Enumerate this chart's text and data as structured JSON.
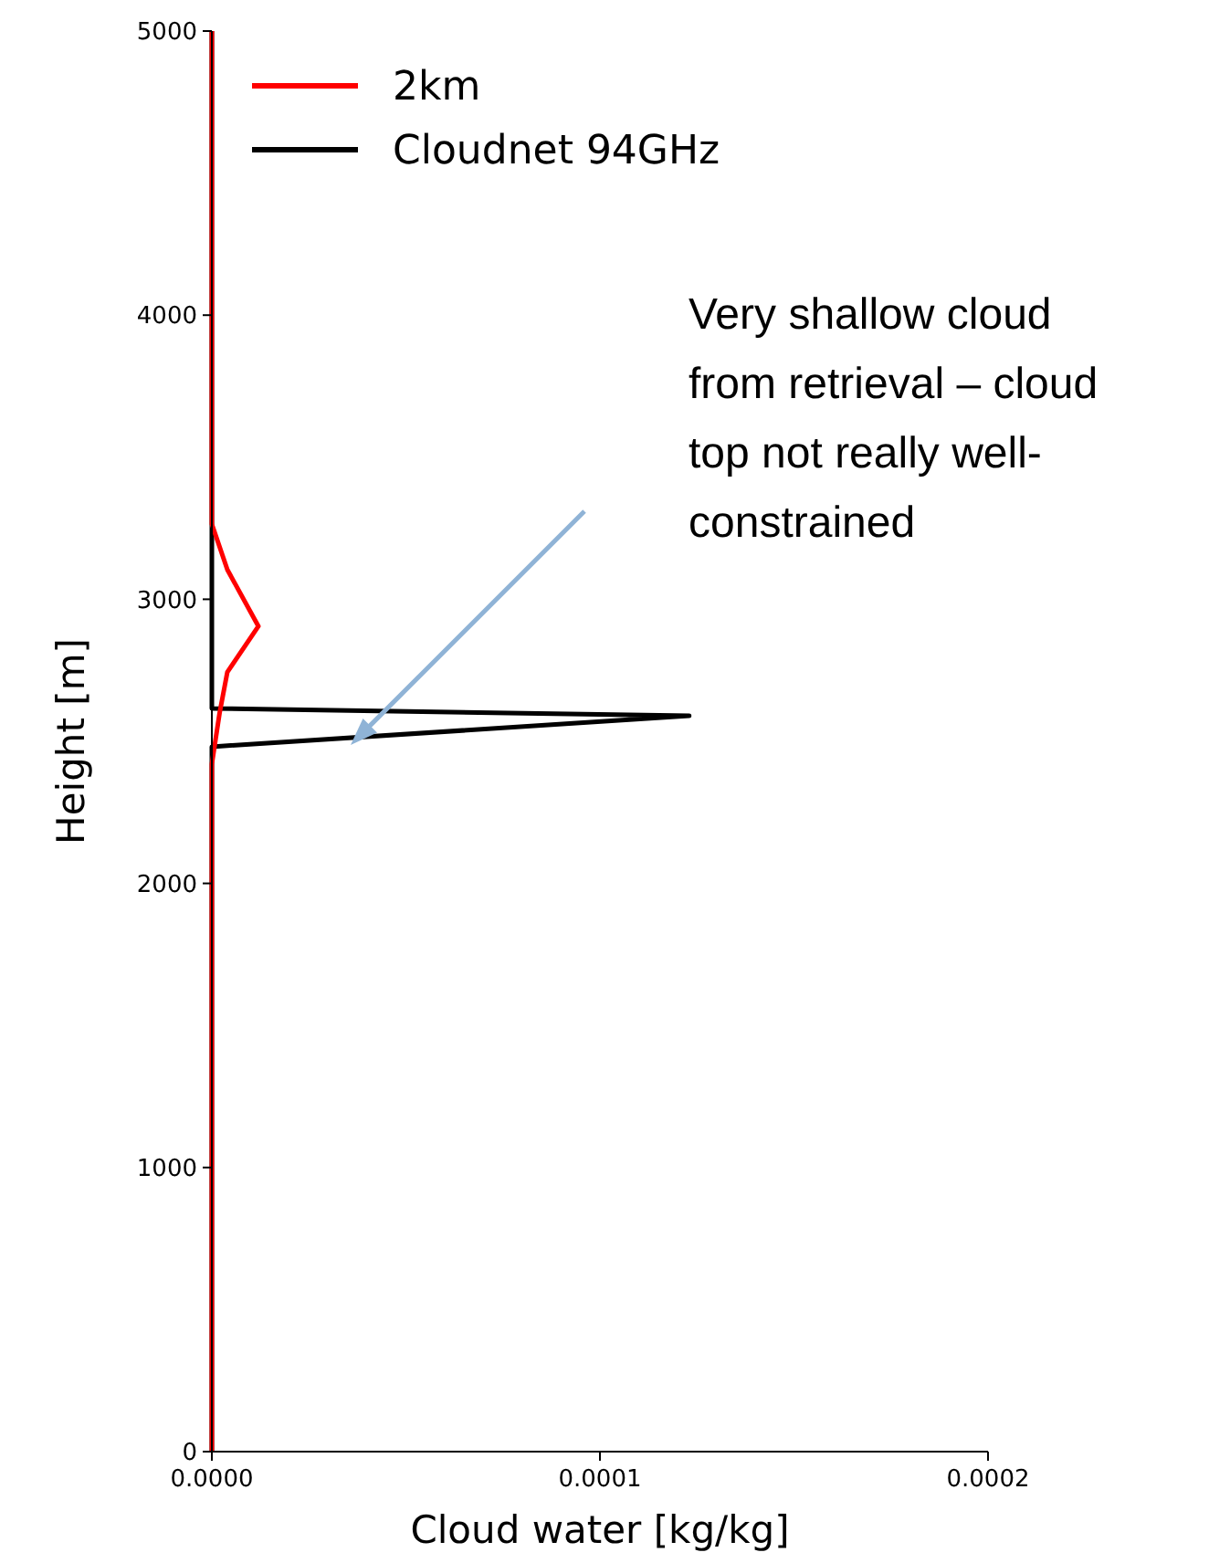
{
  "chart_data": {
    "type": "line",
    "xlabel": "Cloud water [kg/kg]",
    "ylabel": "Height [m]",
    "xlim": [
      0,
      0.0002
    ],
    "xticks": [
      {
        "value": 0,
        "label": "0.0000"
      },
      {
        "value": 0.0001,
        "label": "0.0001"
      },
      {
        "value": 0.0002,
        "label": "0.0002"
      }
    ],
    "ylim": [
      0,
      5000
    ],
    "yticks": [
      0,
      1000,
      2000,
      3000,
      4000,
      5000
    ],
    "grid": false,
    "legend": "top left",
    "series": [
      {
        "name": "2km",
        "color": "#ff0000",
        "x": [
          0,
          0,
          2e-06,
          4e-06,
          1.2e-05,
          4e-06,
          0,
          0
        ],
        "values": [
          0,
          2420,
          2600,
          2744,
          2905,
          3104,
          3265,
          5000
        ]
      },
      {
        "name": "Cloudnet 94GHz",
        "color": "#000000",
        "x": [
          0,
          0,
          0.000123,
          0,
          0
        ],
        "values": [
          0,
          2481,
          2590,
          2616,
          5000
        ]
      }
    ],
    "annotations": [
      "Very shallow cloud from retrieval – cloud top not really well-constrained"
    ]
  }
}
